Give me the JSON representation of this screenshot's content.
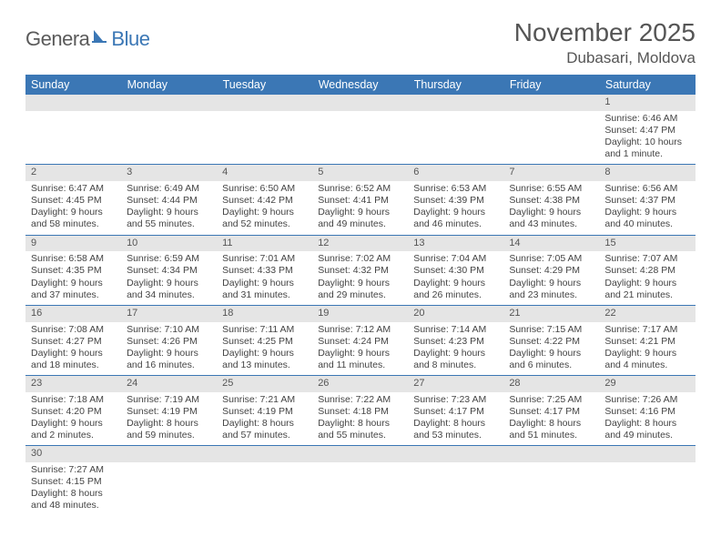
{
  "logo": {
    "part1": "Genera",
    "part2": "Blue"
  },
  "title": "November 2025",
  "location": "Dubasari, Moldova",
  "colors": {
    "header_bg": "#3b77b5",
    "header_fg": "#ffffff",
    "daynum_bg": "#e5e5e5",
    "border": "#3b77b5",
    "text": "#444444",
    "logo_gray": "#5a5a5a",
    "logo_blue": "#3b77b5"
  },
  "weekdays": [
    "Sunday",
    "Monday",
    "Tuesday",
    "Wednesday",
    "Thursday",
    "Friday",
    "Saturday"
  ],
  "weeks": [
    [
      null,
      null,
      null,
      null,
      null,
      null,
      {
        "n": "1",
        "sr": "Sunrise: 6:46 AM",
        "ss": "Sunset: 4:47 PM",
        "dl": "Daylight: 10 hours and 1 minute."
      }
    ],
    [
      {
        "n": "2",
        "sr": "Sunrise: 6:47 AM",
        "ss": "Sunset: 4:45 PM",
        "dl": "Daylight: 9 hours and 58 minutes."
      },
      {
        "n": "3",
        "sr": "Sunrise: 6:49 AM",
        "ss": "Sunset: 4:44 PM",
        "dl": "Daylight: 9 hours and 55 minutes."
      },
      {
        "n": "4",
        "sr": "Sunrise: 6:50 AM",
        "ss": "Sunset: 4:42 PM",
        "dl": "Daylight: 9 hours and 52 minutes."
      },
      {
        "n": "5",
        "sr": "Sunrise: 6:52 AM",
        "ss": "Sunset: 4:41 PM",
        "dl": "Daylight: 9 hours and 49 minutes."
      },
      {
        "n": "6",
        "sr": "Sunrise: 6:53 AM",
        "ss": "Sunset: 4:39 PM",
        "dl": "Daylight: 9 hours and 46 minutes."
      },
      {
        "n": "7",
        "sr": "Sunrise: 6:55 AM",
        "ss": "Sunset: 4:38 PM",
        "dl": "Daylight: 9 hours and 43 minutes."
      },
      {
        "n": "8",
        "sr": "Sunrise: 6:56 AM",
        "ss": "Sunset: 4:37 PM",
        "dl": "Daylight: 9 hours and 40 minutes."
      }
    ],
    [
      {
        "n": "9",
        "sr": "Sunrise: 6:58 AM",
        "ss": "Sunset: 4:35 PM",
        "dl": "Daylight: 9 hours and 37 minutes."
      },
      {
        "n": "10",
        "sr": "Sunrise: 6:59 AM",
        "ss": "Sunset: 4:34 PM",
        "dl": "Daylight: 9 hours and 34 minutes."
      },
      {
        "n": "11",
        "sr": "Sunrise: 7:01 AM",
        "ss": "Sunset: 4:33 PM",
        "dl": "Daylight: 9 hours and 31 minutes."
      },
      {
        "n": "12",
        "sr": "Sunrise: 7:02 AM",
        "ss": "Sunset: 4:32 PM",
        "dl": "Daylight: 9 hours and 29 minutes."
      },
      {
        "n": "13",
        "sr": "Sunrise: 7:04 AM",
        "ss": "Sunset: 4:30 PM",
        "dl": "Daylight: 9 hours and 26 minutes."
      },
      {
        "n": "14",
        "sr": "Sunrise: 7:05 AM",
        "ss": "Sunset: 4:29 PM",
        "dl": "Daylight: 9 hours and 23 minutes."
      },
      {
        "n": "15",
        "sr": "Sunrise: 7:07 AM",
        "ss": "Sunset: 4:28 PM",
        "dl": "Daylight: 9 hours and 21 minutes."
      }
    ],
    [
      {
        "n": "16",
        "sr": "Sunrise: 7:08 AM",
        "ss": "Sunset: 4:27 PM",
        "dl": "Daylight: 9 hours and 18 minutes."
      },
      {
        "n": "17",
        "sr": "Sunrise: 7:10 AM",
        "ss": "Sunset: 4:26 PM",
        "dl": "Daylight: 9 hours and 16 minutes."
      },
      {
        "n": "18",
        "sr": "Sunrise: 7:11 AM",
        "ss": "Sunset: 4:25 PM",
        "dl": "Daylight: 9 hours and 13 minutes."
      },
      {
        "n": "19",
        "sr": "Sunrise: 7:12 AM",
        "ss": "Sunset: 4:24 PM",
        "dl": "Daylight: 9 hours and 11 minutes."
      },
      {
        "n": "20",
        "sr": "Sunrise: 7:14 AM",
        "ss": "Sunset: 4:23 PM",
        "dl": "Daylight: 9 hours and 8 minutes."
      },
      {
        "n": "21",
        "sr": "Sunrise: 7:15 AM",
        "ss": "Sunset: 4:22 PM",
        "dl": "Daylight: 9 hours and 6 minutes."
      },
      {
        "n": "22",
        "sr": "Sunrise: 7:17 AM",
        "ss": "Sunset: 4:21 PM",
        "dl": "Daylight: 9 hours and 4 minutes."
      }
    ],
    [
      {
        "n": "23",
        "sr": "Sunrise: 7:18 AM",
        "ss": "Sunset: 4:20 PM",
        "dl": "Daylight: 9 hours and 2 minutes."
      },
      {
        "n": "24",
        "sr": "Sunrise: 7:19 AM",
        "ss": "Sunset: 4:19 PM",
        "dl": "Daylight: 8 hours and 59 minutes."
      },
      {
        "n": "25",
        "sr": "Sunrise: 7:21 AM",
        "ss": "Sunset: 4:19 PM",
        "dl": "Daylight: 8 hours and 57 minutes."
      },
      {
        "n": "26",
        "sr": "Sunrise: 7:22 AM",
        "ss": "Sunset: 4:18 PM",
        "dl": "Daylight: 8 hours and 55 minutes."
      },
      {
        "n": "27",
        "sr": "Sunrise: 7:23 AM",
        "ss": "Sunset: 4:17 PM",
        "dl": "Daylight: 8 hours and 53 minutes."
      },
      {
        "n": "28",
        "sr": "Sunrise: 7:25 AM",
        "ss": "Sunset: 4:17 PM",
        "dl": "Daylight: 8 hours and 51 minutes."
      },
      {
        "n": "29",
        "sr": "Sunrise: 7:26 AM",
        "ss": "Sunset: 4:16 PM",
        "dl": "Daylight: 8 hours and 49 minutes."
      }
    ],
    [
      {
        "n": "30",
        "sr": "Sunrise: 7:27 AM",
        "ss": "Sunset: 4:15 PM",
        "dl": "Daylight: 8 hours and 48 minutes."
      },
      null,
      null,
      null,
      null,
      null,
      null
    ]
  ]
}
